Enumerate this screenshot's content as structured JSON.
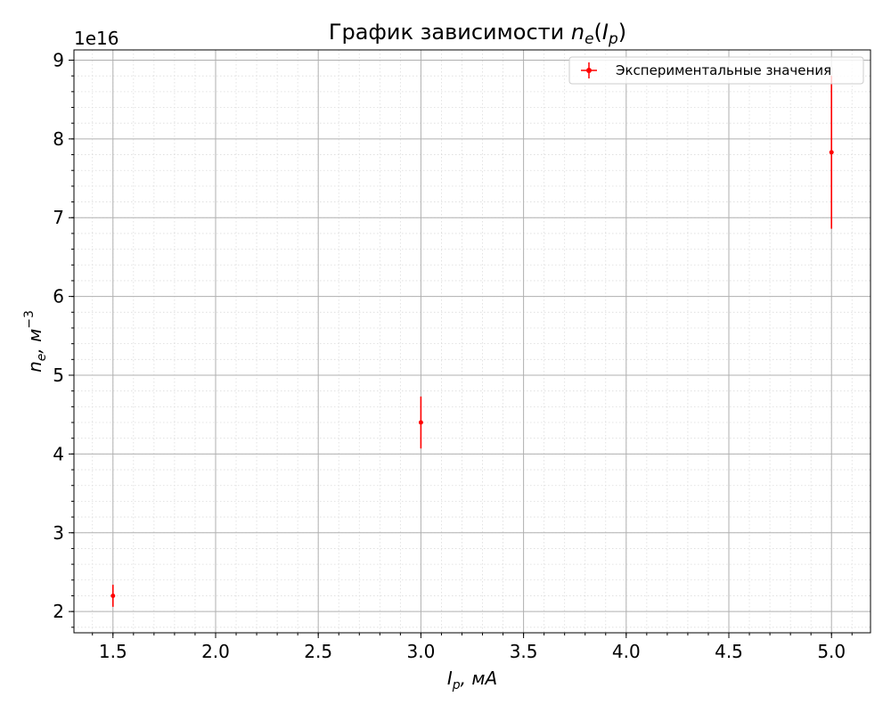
{
  "chart_data": {
    "type": "scatter",
    "title": "График зависимости ",
    "title_math": {
      "base": "n",
      "sub": "e",
      "open": "(",
      "inner_base": "I",
      "inner_sub": "p",
      "close": ")"
    },
    "xlabel_math": {
      "base": "I",
      "sub": "p",
      "rest": ", мА"
    },
    "ylabel_math": {
      "base": "n",
      "sub": "e",
      "rest": ", м",
      "sup": "−3"
    },
    "y_offset_text": "1e16",
    "xlim": [
      1.31,
      5.19
    ],
    "ylim": [
      1.73,
      9.13
    ],
    "y_scale_note": "values in units of 1e16",
    "x_ticks": [
      1.5,
      2.0,
      2.5,
      3.0,
      3.5,
      4.0,
      4.5,
      5.0
    ],
    "x_tick_labels": [
      "1.5",
      "2.0",
      "2.5",
      "3.0",
      "3.5",
      "4.0",
      "4.5",
      "5.0"
    ],
    "y_ticks": [
      2,
      3,
      4,
      5,
      6,
      7,
      8,
      9
    ],
    "y_tick_labels": [
      "2",
      "3",
      "4",
      "5",
      "6",
      "7",
      "8",
      "9"
    ],
    "x_minor_step": 0.1,
    "y_minor_step": 0.2,
    "grid": true,
    "minor_grid": true,
    "legend_position": "top-right",
    "series": [
      {
        "name": "Экспериментальные значения",
        "color": "#ff0000",
        "x": [
          1.5,
          3.0,
          5.0
        ],
        "y": [
          2.2,
          4.4,
          7.83
        ],
        "yerr": [
          0.14,
          0.33,
          0.97
        ]
      }
    ]
  }
}
